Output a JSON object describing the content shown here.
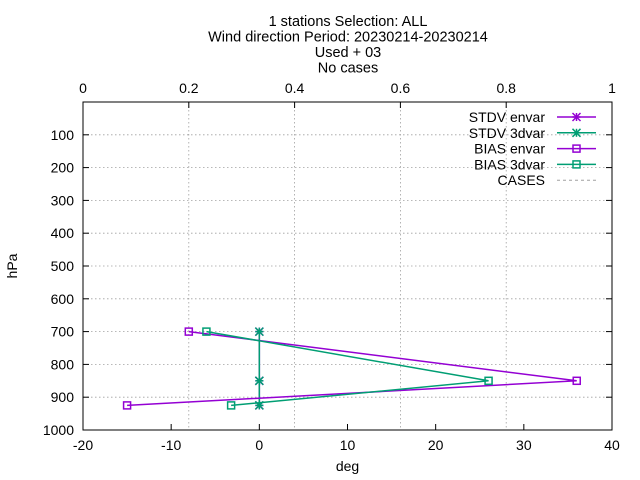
{
  "chart_data": {
    "type": "line",
    "title_lines": [
      "1 stations Selection: ALL",
      "Wind direction  Period: 20230214-20230214",
      "Used  + 03",
      "No cases"
    ],
    "xlabel": "deg",
    "ylabel": "hPa",
    "xlim": [
      -20,
      40
    ],
    "ylim": [
      1000,
      0
    ],
    "y_inverted": true,
    "x_ticks": [
      -20,
      -10,
      0,
      10,
      20,
      30,
      40
    ],
    "y_ticks": [
      100,
      200,
      300,
      400,
      500,
      600,
      700,
      800,
      900,
      1000
    ],
    "x2lim": [
      0,
      1
    ],
    "x2_ticks": [
      "0",
      "0.2",
      "0.4",
      "0.6",
      "0.8",
      "1"
    ],
    "grid": true,
    "legend_position": "top-right",
    "series": [
      {
        "name": "STDV envar",
        "color": "#9400d3",
        "marker": "star",
        "points": [
          [
            0,
            700
          ],
          [
            0,
            850
          ],
          [
            0,
            925
          ]
        ]
      },
      {
        "name": "STDV 3dvar",
        "color": "#009e73",
        "marker": "star",
        "points": [
          [
            0,
            700
          ],
          [
            0,
            850
          ],
          [
            0,
            925
          ]
        ]
      },
      {
        "name": "BIAS envar",
        "color": "#9400d3",
        "marker": "square",
        "points": [
          [
            -8,
            700
          ],
          [
            36,
            850
          ],
          [
            -15,
            925
          ]
        ]
      },
      {
        "name": "BIAS 3dvar",
        "color": "#009e73",
        "marker": "square",
        "points": [
          [
            -6,
            700
          ],
          [
            26,
            850
          ],
          [
            -3.2,
            925
          ]
        ]
      },
      {
        "name": "CASES",
        "color": "#a0a0a0",
        "marker": "none",
        "dashed": true,
        "axis": "x2",
        "points": [
          [
            1,
            700
          ],
          [
            1,
            850
          ],
          [
            1,
            925
          ]
        ]
      }
    ]
  }
}
